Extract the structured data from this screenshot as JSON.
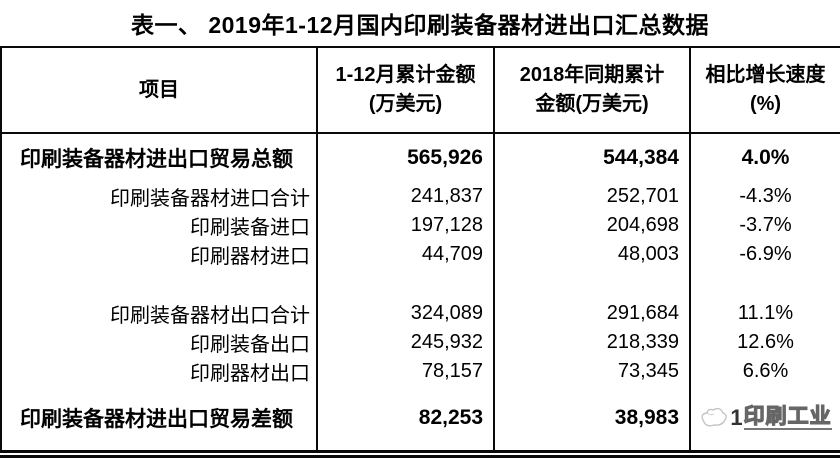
{
  "page_title": "表一、 2019年1-12月国内印刷装备器材进出口汇总数据",
  "table": {
    "headers": [
      {
        "line1": "项目",
        "line2": ""
      },
      {
        "line1": "1-12月累计金额",
        "line2": "(万美元)"
      },
      {
        "line1": "2018年同期累计",
        "line2": "金额(万美元)"
      },
      {
        "line1": "相比增长速度",
        "line2": "(%)"
      }
    ],
    "rows": [
      {
        "style": "main",
        "label": "印刷装备器材进出口贸易总额",
        "current": "565,926",
        "previous": "544,384",
        "change": "4.0%"
      },
      {
        "style": "sub",
        "label": "印刷装备器材进口合计",
        "current": "241,837",
        "previous": "252,701",
        "change": "-4.3%"
      },
      {
        "style": "sub",
        "label": "印刷装备进口",
        "current": "197,128",
        "previous": "204,698",
        "change": "-3.7%"
      },
      {
        "style": "sub",
        "label": "印刷器材进口",
        "current": "44,709",
        "previous": "48,003",
        "change": "-6.9%"
      },
      {
        "style": "spacer"
      },
      {
        "style": "sub",
        "label": "印刷装备器材出口合计",
        "current": "324,089",
        "previous": "291,684",
        "change": "11.1%"
      },
      {
        "style": "sub",
        "label": "印刷装备出口",
        "current": "245,932",
        "previous": "218,339",
        "change": "12.6%"
      },
      {
        "style": "sub",
        "label": "印刷器材出口",
        "current": "78,157",
        "previous": "73,345",
        "change": "6.6%"
      },
      {
        "style": "last",
        "label": "印刷装备器材进出口贸易差额",
        "current": "82,253",
        "previous": "38,983",
        "change": "",
        "watermark_cell": true
      }
    ],
    "watermark": {
      "prefix": "1",
      "text": "印刷工业"
    }
  },
  "chart_data": {
    "type": "table",
    "title": "表一、 2019年1-12月国内印刷装备器材进出口汇总数据",
    "columns": [
      "项目",
      "1-12月累计金额(万美元)",
      "2018年同期累计金额(万美元)",
      "相比增长速度(%)"
    ],
    "rows": [
      [
        "印刷装备器材进出口贸易总额",
        565926,
        544384,
        "4.0%"
      ],
      [
        "印刷装备器材进口合计",
        241837,
        252701,
        "-4.3%"
      ],
      [
        "印刷装备进口",
        197128,
        204698,
        "-3.7%"
      ],
      [
        "印刷器材进口",
        44709,
        48003,
        "-6.9%"
      ],
      [
        "印刷装备器材出口合计",
        324089,
        291684,
        "11.1%"
      ],
      [
        "印刷装备出口",
        245932,
        218339,
        "12.6%"
      ],
      [
        "印刷器材出口",
        78157,
        73345,
        "6.6%"
      ],
      [
        "印刷装备器材进出口贸易差额",
        82253,
        38983,
        "(被“印刷工业”水印遮挡)"
      ]
    ],
    "notes": "最后一行增长速度单元格被灰色描边水印（鸽形标志+“1印刷工业”带下划线）覆盖"
  }
}
